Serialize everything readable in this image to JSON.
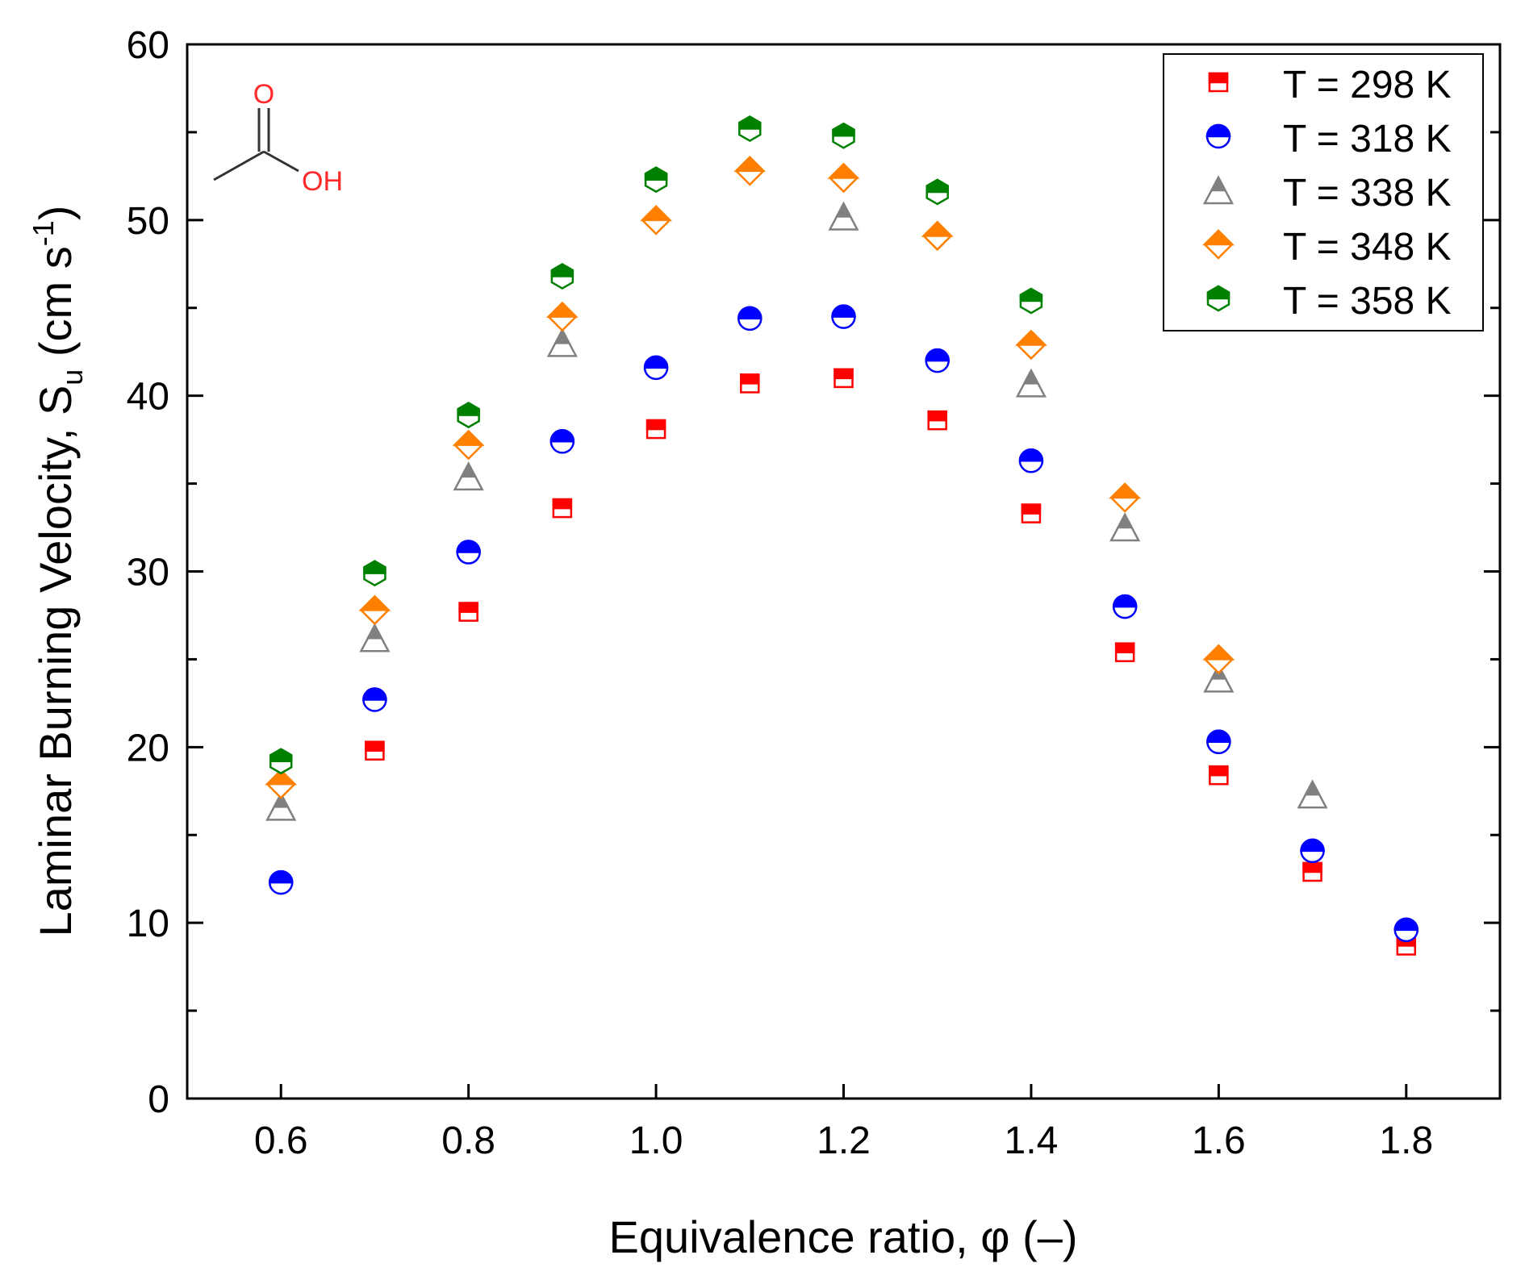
{
  "chart_data": {
    "type": "scatter",
    "title": "",
    "xlabel": "Equivalence ratio, φ (–)",
    "ylabel": {
      "main": "Laminar Burning Velocity, S",
      "subscript": "u",
      "unit_open": " (cm s",
      "superscript": "-1",
      "unit_close": ")"
    },
    "xlim": [
      0.5,
      1.9
    ],
    "ylim": [
      0,
      60
    ],
    "xticks": [
      "0.6",
      "0.8",
      "1.0",
      "1.2",
      "1.4",
      "1.6",
      "1.8"
    ],
    "xtick_values": [
      0.6,
      0.8,
      1.0,
      1.2,
      1.4,
      1.6,
      1.8
    ],
    "yticks": [
      "0",
      "10",
      "20",
      "30",
      "40",
      "50",
      "60"
    ],
    "ytick_values": [
      0,
      10,
      20,
      30,
      40,
      50,
      60
    ],
    "legend_position": "top-right",
    "molecule_inset": {
      "atom_o": "O",
      "atom_oh": "OH"
    },
    "series": [
      {
        "name": "T = 298 K",
        "marker": "square",
        "color": "#ff0000",
        "x": [
          0.7,
          0.8,
          0.9,
          1.0,
          1.1,
          1.2,
          1.3,
          1.4,
          1.5,
          1.6,
          1.7,
          1.8
        ],
        "y": [
          19.8,
          27.7,
          33.6,
          38.1,
          40.7,
          41.0,
          38.6,
          33.3,
          25.4,
          18.4,
          12.9,
          8.7
        ]
      },
      {
        "name": "T = 318 K",
        "marker": "circle",
        "color": "#0000ff",
        "x": [
          0.6,
          0.7,
          0.8,
          0.9,
          1.0,
          1.1,
          1.2,
          1.3,
          1.4,
          1.5,
          1.6,
          1.7,
          1.8
        ],
        "y": [
          12.3,
          22.7,
          31.1,
          37.4,
          41.6,
          44.4,
          44.5,
          42.0,
          36.3,
          28.0,
          20.3,
          14.1,
          9.6
        ]
      },
      {
        "name": "T = 338 K",
        "marker": "triangle",
        "color": "#808080",
        "x": [
          0.6,
          0.7,
          0.8,
          0.9,
          1.0,
          1.1,
          1.2,
          1.3,
          1.4,
          1.5,
          1.6,
          1.7
        ],
        "y": [
          16.6,
          26.2,
          35.4,
          43.0,
          0,
          0,
          50.2,
          0,
          40.7,
          32.5,
          23.9,
          17.3
        ],
        "present": [
          true,
          true,
          true,
          true,
          false,
          false,
          true,
          false,
          true,
          true,
          true,
          true
        ]
      },
      {
        "name": "T = 348 K",
        "marker": "diamond",
        "color": "#ff7f00",
        "x": [
          0.6,
          0.7,
          0.8,
          0.9,
          1.0,
          1.1,
          1.2,
          1.3,
          1.4,
          1.5,
          1.6
        ],
        "y": [
          17.9,
          27.8,
          37.2,
          44.5,
          50.0,
          52.8,
          52.4,
          49.1,
          42.9,
          34.2,
          25.0
        ]
      },
      {
        "name": "T = 358 K",
        "marker": "hexagon",
        "color": "#008000",
        "x": [
          0.6,
          0.7,
          0.8,
          0.9,
          1.0,
          1.1,
          1.2,
          1.3,
          1.4
        ],
        "y": [
          19.2,
          29.9,
          38.9,
          46.8,
          52.3,
          55.2,
          54.8,
          51.6,
          45.4
        ]
      }
    ]
  }
}
